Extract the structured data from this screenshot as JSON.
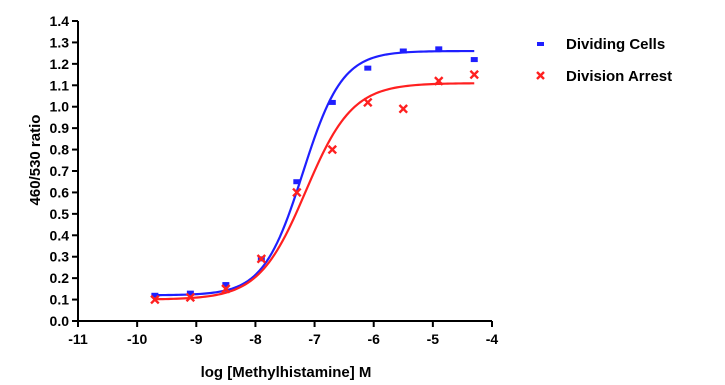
{
  "chart_data": {
    "type": "scatter",
    "xlabel": "log [Methylhistamine] M",
    "ylabel": "460/530  ratio",
    "xlim": [
      -11,
      -4
    ],
    "ylim": [
      0.0,
      1.4
    ],
    "x_ticks": [
      "-11",
      "-10",
      "-9",
      "-8",
      "-7",
      "-6",
      "-5",
      "-4"
    ],
    "y_ticks": [
      "0.0",
      "0.1",
      "0.2",
      "0.3",
      "0.4",
      "0.5",
      "0.6",
      "0.7",
      "0.8",
      "0.9",
      "1.0",
      "1.1",
      "1.2",
      "1.3",
      "1.4"
    ],
    "legend_position": "top-right",
    "series": [
      {
        "name": "Dividing Cells",
        "color": "#1f1fff",
        "marker": "dash",
        "x": [
          -9.7,
          -9.1,
          -8.5,
          -7.9,
          -7.3,
          -6.7,
          -6.1,
          -5.5,
          -4.9,
          -4.3
        ],
        "y": [
          0.12,
          0.13,
          0.17,
          0.29,
          0.65,
          1.02,
          1.18,
          1.26,
          1.27,
          1.22
        ],
        "fit": {
          "bottom": 0.12,
          "top": 1.26,
          "logEC50": -7.2,
          "hill": 1.3
        }
      },
      {
        "name": "Division Arrest",
        "color": "#ff2020",
        "marker": "x",
        "x": [
          -9.7,
          -9.1,
          -8.5,
          -7.9,
          -7.3,
          -6.7,
          -6.1,
          -5.5,
          -4.9,
          -4.3
        ],
        "y": [
          0.1,
          0.11,
          0.15,
          0.29,
          0.6,
          0.8,
          1.02,
          0.99,
          1.12,
          1.15
        ],
        "fit": {
          "bottom": 0.1,
          "top": 1.11,
          "logEC50": -7.15,
          "hill": 1.1
        }
      }
    ]
  }
}
